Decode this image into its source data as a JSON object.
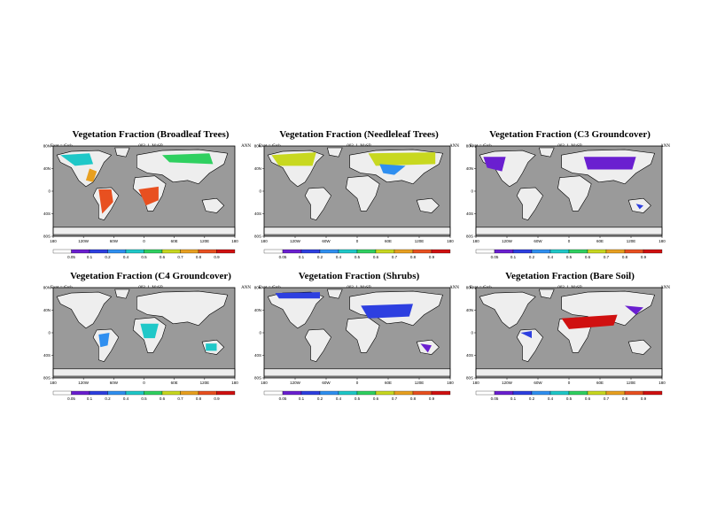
{
  "panels": [
    {
      "title": "Vegetation Fraction (Broadleaf Trees)",
      "experiment": "Expt = t5rsh",
      "run": "003_1_MaSP",
      "season": "ANN",
      "colorbar_ticks": [
        "0.05",
        "0.1",
        "0.2",
        "0.4",
        "0.5",
        "0.6",
        "0.7",
        "0.8",
        "0.9"
      ],
      "lon_labels": [
        "180",
        "120W",
        "60W",
        "0",
        "60E",
        "120E",
        "180"
      ],
      "lat_labels": [
        "80N",
        "40N",
        "0",
        "40S",
        "80S"
      ]
    },
    {
      "title": "Vegetation Fraction (Needleleaf Trees)",
      "experiment": "Expt = t5rsh",
      "run": "003_1_MaSP",
      "season": "ANN",
      "colorbar_ticks": [
        "0.05",
        "0.1",
        "0.2",
        "0.4",
        "0.5",
        "0.6",
        "0.7",
        "0.8",
        "0.9"
      ],
      "lon_labels": [
        "180",
        "120W",
        "60W",
        "0",
        "60E",
        "120E",
        "180"
      ],
      "lat_labels": [
        "80N",
        "40N",
        "0",
        "40S",
        "80S"
      ]
    },
    {
      "title": "Vegetation Fraction (C3 Groundcover)",
      "experiment": "Expt = t5rsh",
      "run": "003_1_MaSP",
      "season": "ANN",
      "colorbar_ticks": [
        "0.05",
        "0.1",
        "0.2",
        "0.4",
        "0.5",
        "0.6",
        "0.7",
        "0.8",
        "0.9"
      ],
      "lon_labels": [
        "180",
        "120W",
        "60W",
        "0",
        "60E",
        "120E",
        "180"
      ],
      "lat_labels": [
        "80N",
        "40N",
        "0",
        "40S",
        "80S"
      ]
    },
    {
      "title": "Vegetation Fraction (C4 Groundcover)",
      "experiment": "Expt = t5rsh",
      "run": "003_1_MaSP",
      "season": "ANN",
      "colorbar_ticks": [
        "0.05",
        "0.1",
        "0.2",
        "0.4",
        "0.5",
        "0.6",
        "0.7",
        "0.8",
        "0.9"
      ],
      "lon_labels": [
        "180",
        "120W",
        "60W",
        "0",
        "60E",
        "120E",
        "180"
      ],
      "lat_labels": [
        "80N",
        "40N",
        "0",
        "40S",
        "80S"
      ]
    },
    {
      "title": "Vegetation Fraction (Shrubs)",
      "experiment": "Expt = t5rsh",
      "run": "003_1_MaSP",
      "season": "ANN",
      "colorbar_ticks": [
        "0.05",
        "0.1",
        "0.2",
        "0.4",
        "0.5",
        "0.6",
        "0.7",
        "0.8",
        "0.9"
      ],
      "lon_labels": [
        "180",
        "120W",
        "60W",
        "0",
        "60E",
        "120E",
        "180"
      ],
      "lat_labels": [
        "80N",
        "40N",
        "0",
        "40S",
        "80S"
      ]
    },
    {
      "title": "Vegetation Fraction (Bare Soil)",
      "experiment": "Expt = t5rsh",
      "run": "003_1_MaSP",
      "season": "ANN",
      "colorbar_ticks": [
        "0.05",
        "0.1",
        "0.2",
        "0.4",
        "0.5",
        "0.6",
        "0.7",
        "0.8",
        "0.9"
      ],
      "lon_labels": [
        "180",
        "120W",
        "60W",
        "0",
        "60E",
        "120E",
        "180"
      ],
      "lat_labels": [
        "80N",
        "40N",
        "0",
        "40S",
        "80S"
      ]
    }
  ],
  "colors": {
    "ocean": "#9a9a9a",
    "land_background": "#eeeeee",
    "colorbar": [
      "#ffffff",
      "#6a1fd0",
      "#2d3fe0",
      "#2f8ff0",
      "#1fc8c8",
      "#2fd060",
      "#c8d820",
      "#e8a020",
      "#e85020",
      "#d01010"
    ]
  }
}
